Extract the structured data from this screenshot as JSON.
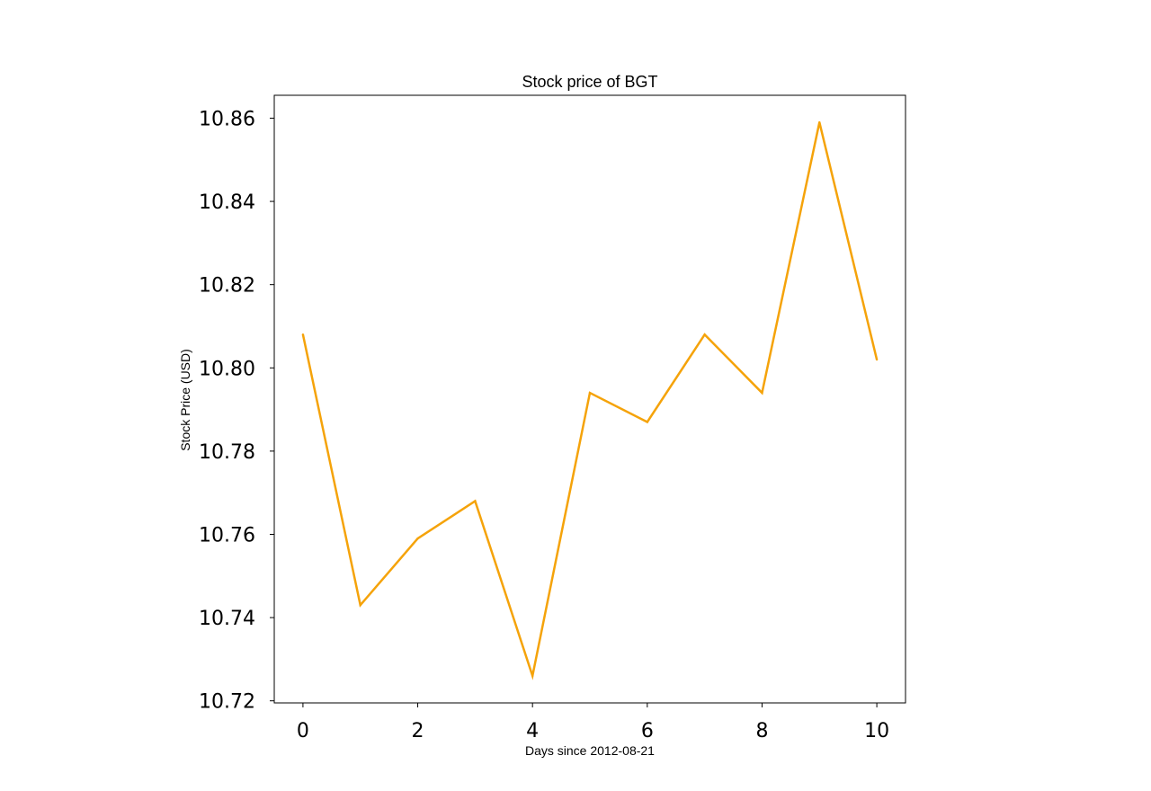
{
  "chart_data": {
    "type": "line",
    "title": "Stock price of BGT",
    "xlabel": "Days since 2012-08-21",
    "ylabel": "Stock Price (USD)",
    "x": [
      0,
      1,
      2,
      3,
      4,
      5,
      6,
      7,
      8,
      9,
      10
    ],
    "series": [
      {
        "values": [
          10.808,
          10.743,
          10.759,
          10.768,
          10.726,
          10.794,
          10.787,
          10.808,
          10.794,
          10.859,
          10.802
        ],
        "color": "#f5a30a"
      }
    ],
    "xlim": [
      -0.5,
      10.5
    ],
    "ylim": [
      10.7195,
      10.8655
    ],
    "xticks": [
      0,
      2,
      4,
      6,
      8,
      10
    ],
    "xtick_labels": [
      "0",
      "2",
      "4",
      "6",
      "8",
      "10"
    ],
    "yticks": [
      10.72,
      10.74,
      10.76,
      10.78,
      10.8,
      10.82,
      10.84,
      10.86
    ],
    "ytick_labels": [
      "10.72",
      "10.74",
      "10.76",
      "10.78",
      "10.80",
      "10.82",
      "10.84",
      "10.86"
    ],
    "grid": false,
    "legend": false
  }
}
